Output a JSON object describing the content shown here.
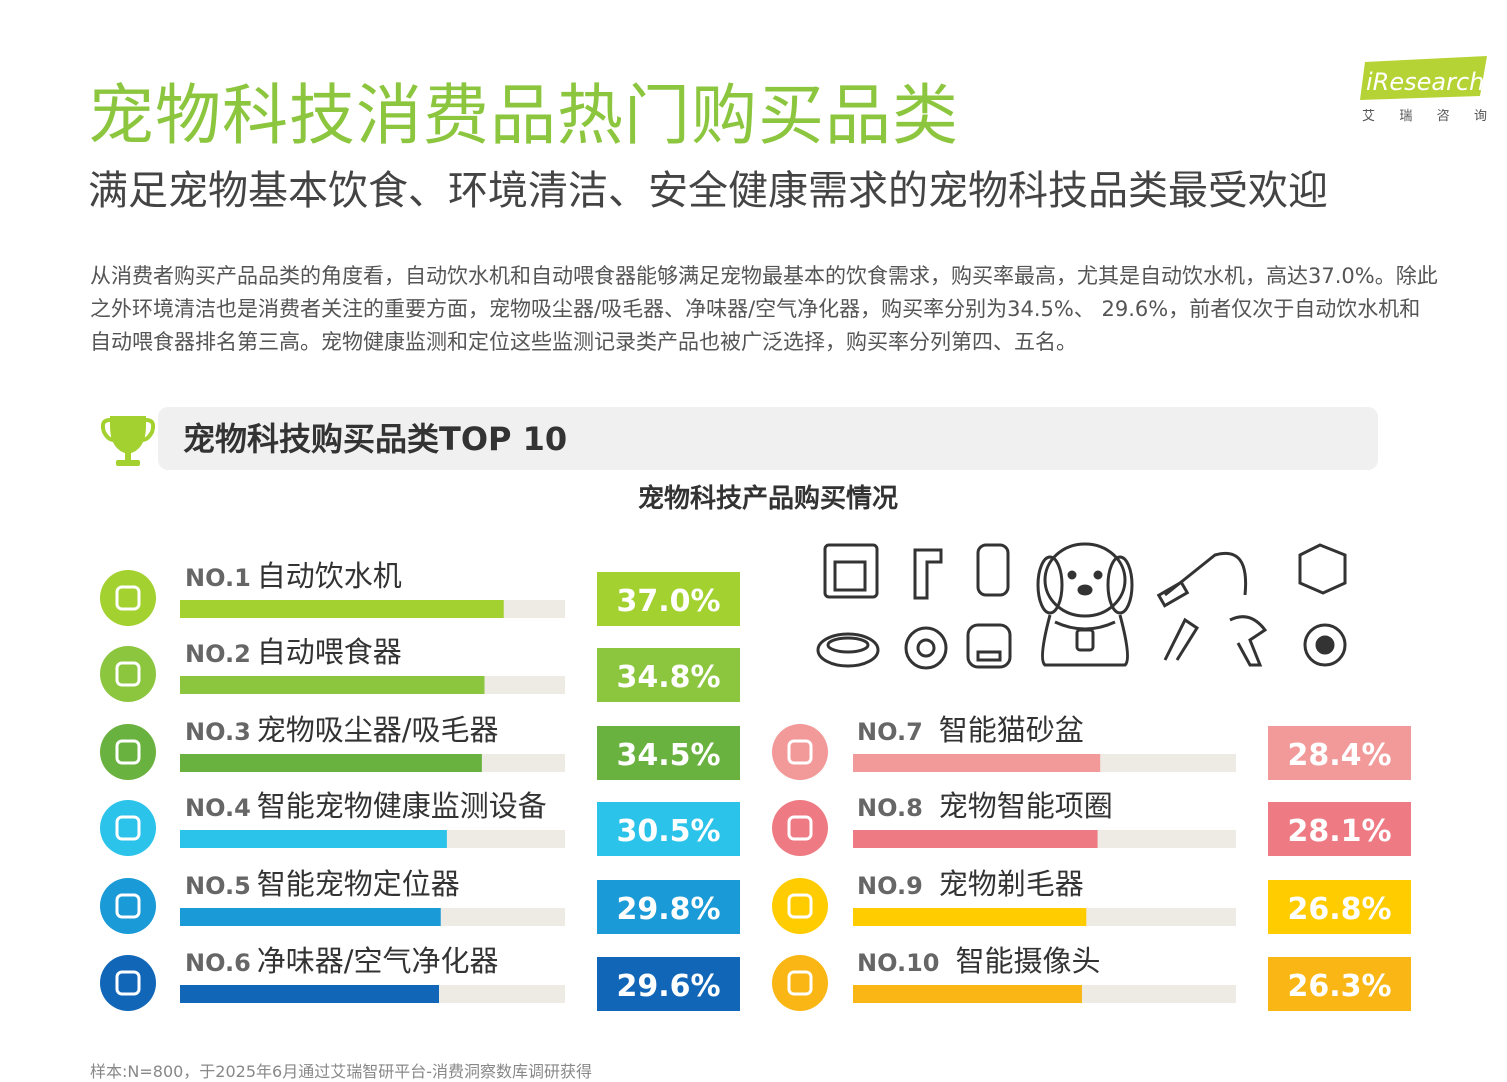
{
  "header": {
    "title": "宠物科技消费品热门购买品类",
    "subtitle": "满足宠物基本饮食、环境清洁、安全健康需求的宠物科技品类最受欢迎"
  },
  "logo": {
    "name": "iResearch",
    "cn": "艾 瑞 咨 询"
  },
  "paragraph": "从消费者购买产品品类的角度看，自动饮水机和自动喂食器能够满足宠物最基本的饮食需求，购买率最高，尤其是自动饮水机，高达37.0%。除此之外环境清洁也是消费者关注的重要方面，宠物吸尘器/吸毛器、净味器/空气净化器，购买率分别为34.5%、 29.6%，前者仅次于自动饮水机和自动喂食器排名第三高。宠物健康监测和定位这些监测记录类产品也被广泛选择，购买率分列第四、五名。",
  "section_title": "宠物科技购买品类TOP 10",
  "footnote": "样本:N=800，于2025年6月通过艾瑞智研平台-消费洞察数库调研获得",
  "chart_data": {
    "type": "bar",
    "title": "宠物科技产品购买情况",
    "ranks": [
      "NO.1",
      "NO.2",
      "NO.3",
      "NO.4",
      "NO.5",
      "NO.6",
      "NO.7",
      "NO.8",
      "NO.9",
      "NO.10"
    ],
    "categories": [
      "自动饮水机",
      "自动喂食器",
      "宠物吸尘器/吸毛器",
      "智能宠物健康监测设备",
      "智能宠物定位器",
      "净味器/空气净化器",
      "智能猫砂盆",
      "宠物智能项圈",
      "宠物剃毛器",
      "智能摄像头"
    ],
    "values": [
      37.0,
      34.8,
      34.5,
      30.5,
      29.8,
      29.6,
      28.4,
      28.1,
      26.8,
      26.3
    ],
    "value_labels": [
      "37.0%",
      "34.8%",
      "34.5%",
      "30.5%",
      "29.8%",
      "29.6%",
      "28.4%",
      "28.1%",
      "26.8%",
      "26.3%"
    ],
    "colors": [
      "#a3d12f",
      "#8cc63f",
      "#6ab23f",
      "#2bc3ea",
      "#1a9ad6",
      "#1166b8",
      "#f29a9a",
      "#ee7b84",
      "#ffcc00",
      "#f9b615"
    ],
    "xlim": [
      0,
      44
    ]
  }
}
